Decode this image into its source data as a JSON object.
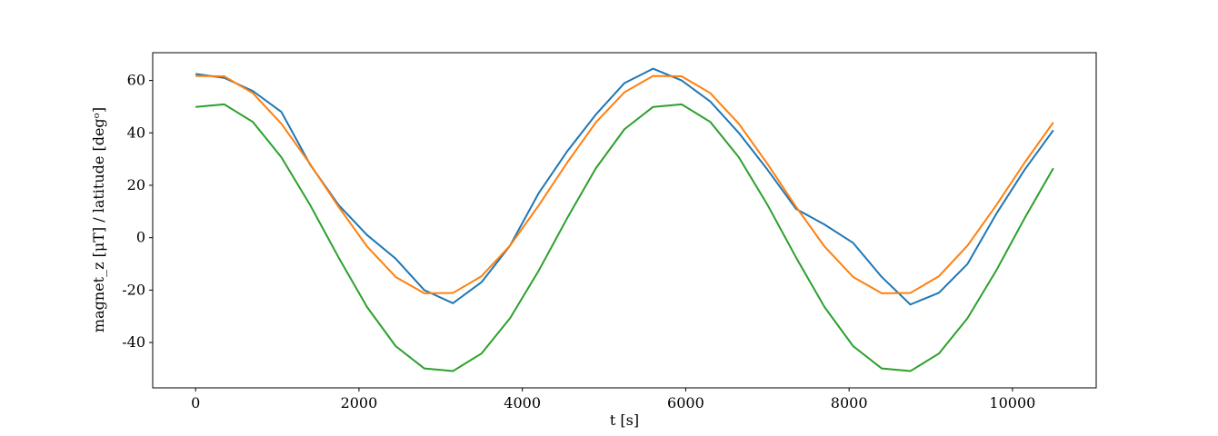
{
  "chart_data": {
    "type": "line",
    "xlabel": "t [s]",
    "ylabel": "magnet_z [μT] / latitude [degᵒ]",
    "x": [
      0,
      350,
      700,
      1050,
      1400,
      1750,
      2100,
      2450,
      2800,
      3150,
      3500,
      3850,
      4200,
      4550,
      4900,
      5250,
      5600,
      5950,
      6300,
      6650,
      7000,
      7350,
      7700,
      8050,
      8400,
      8750,
      9100,
      9450,
      9800,
      10150,
      10500
    ],
    "series": [
      {
        "color": "#1f77b4",
        "values": [
          62.5,
          61,
          56,
          48,
          28,
          12.5,
          1,
          -8,
          -20,
          -25,
          -17,
          -3,
          17,
          33,
          47,
          59,
          64.5,
          60,
          52,
          40,
          26,
          11,
          5,
          -2,
          -15,
          -25.5,
          -21,
          -10,
          9,
          26,
          41
        ]
      },
      {
        "color": "#ff7f0e",
        "values": [
          61.7,
          61.6,
          55.2,
          43.5,
          28.2,
          11.8,
          -3.4,
          -15.0,
          -21.2,
          -21.1,
          -14.7,
          -3.0,
          12.3,
          28.7,
          44.0,
          55.5,
          61.7,
          61.6,
          55.2,
          43.5,
          28.2,
          11.8,
          -3.4,
          -15.0,
          -21.2,
          -21.1,
          -14.7,
          -3.0,
          12.3,
          28.7,
          44.0
        ]
      },
      {
        "color": "#2ca02c",
        "values": [
          49.9,
          50.9,
          44.2,
          30.7,
          12.6,
          -7.5,
          -26.5,
          -41.4,
          -49.9,
          -50.9,
          -44.2,
          -30.7,
          -12.6,
          7.5,
          26.5,
          41.4,
          49.9,
          50.9,
          44.2,
          30.7,
          12.6,
          -7.5,
          -26.5,
          -41.4,
          -49.9,
          -50.9,
          -44.2,
          -30.7,
          -12.6,
          7.5,
          26.5
        ]
      }
    ],
    "xlim": [
      -525,
      11025
    ],
    "xticks": [
      0,
      2000,
      4000,
      6000,
      8000,
      10000
    ],
    "ylim": [
      -57.3,
      70.6
    ],
    "yticks": [
      -40,
      -20,
      0,
      20,
      40,
      60
    ],
    "grid": false
  }
}
